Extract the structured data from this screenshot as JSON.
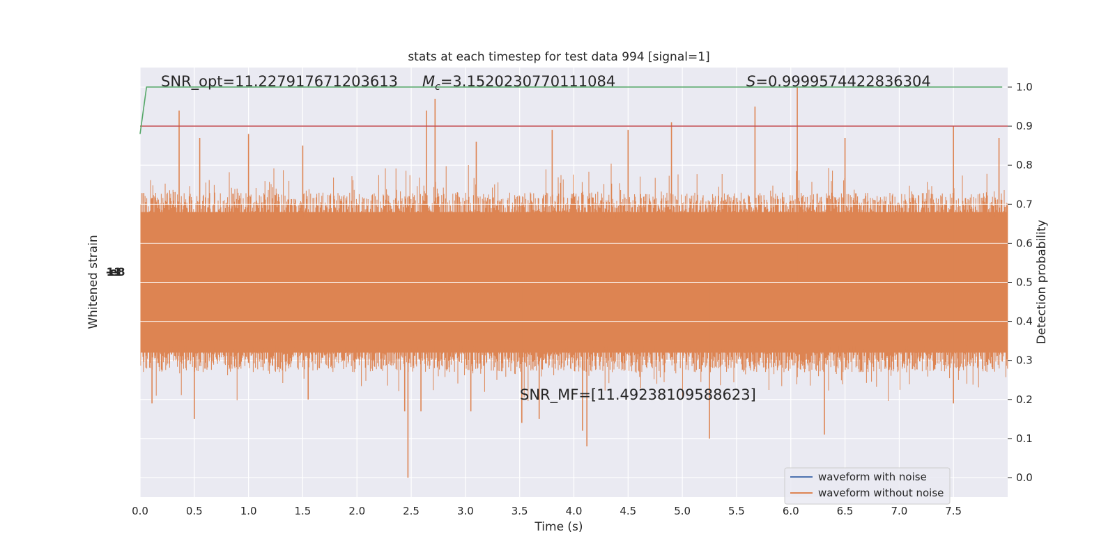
{
  "chart_data": {
    "type": "line",
    "title": "stats at each timestep for test data 994 [signal=1]",
    "xlabel": "Time (s)",
    "ylabel_left": "Whitened strain",
    "ylabel_right": "Detection probability",
    "xlim": [
      0.0,
      8.0
    ],
    "ylim_right": [
      -0.05,
      1.05
    ],
    "xticks": [
      "0.0",
      "0.5",
      "1.0",
      "1.5",
      "2.0",
      "2.5",
      "3.0",
      "3.5",
      "4.0",
      "4.5",
      "5.0",
      "5.5",
      "6.0",
      "6.5",
      "7.0",
      "7.5"
    ],
    "yticks_right": [
      "0.0",
      "0.1",
      "0.2",
      "0.3",
      "0.4",
      "0.5",
      "0.6",
      "0.7",
      "0.8",
      "0.9",
      "1.0"
    ],
    "left_tick_labels_overlapping": "-1e-18",
    "annotations": {
      "snr_opt": "SNR_opt=11.227917671203613",
      "mc_symbol": "M",
      "mc_sub": "c",
      "mc_value": "=3.1520230770111084",
      "s_symbol": "S",
      "s_value": "=0.9999574422836304",
      "snr_mf": "SNR_MF=[11.49238109588623]"
    },
    "legend": [
      {
        "label": "waveform with noise",
        "color": "#4c72b0"
      },
      {
        "label": "waveform without noise",
        "color": "#dd8452"
      }
    ],
    "series": [
      {
        "name": "waveform with noise",
        "color": "#4c72b0",
        "visible_extent": "hidden behind orange trace"
      },
      {
        "name": "waveform without noise",
        "color": "#dd8452",
        "center": 0.5,
        "typical_range": [
          0.3,
          0.7
        ],
        "max": 1.0,
        "min": 0.0
      },
      {
        "name": "detection probability",
        "color": "#55a868",
        "x": [
          0.0,
          0.06,
          7.95
        ],
        "values": [
          0.88,
          1.0,
          1.0
        ]
      },
      {
        "name": "threshold",
        "color": "#c44e52",
        "x": [
          0.0,
          8.0
        ],
        "values": [
          0.9,
          0.9
        ]
      }
    ],
    "spikes_up": [
      [
        0.36,
        0.94
      ],
      [
        0.55,
        0.87
      ],
      [
        1.0,
        0.88
      ],
      [
        2.64,
        0.94
      ],
      [
        2.72,
        0.97
      ],
      [
        3.8,
        0.89
      ],
      [
        4.5,
        0.89
      ],
      [
        4.9,
        0.91
      ],
      [
        5.67,
        0.95
      ],
      [
        6.06,
        1.0
      ],
      [
        6.5,
        0.87
      ],
      [
        7.5,
        0.9
      ],
      [
        7.92,
        0.87
      ],
      [
        1.5,
        0.85
      ],
      [
        3.1,
        0.86
      ]
    ],
    "spikes_down": [
      [
        0.11,
        0.19
      ],
      [
        0.5,
        0.15
      ],
      [
        2.44,
        0.17
      ],
      [
        2.47,
        0.0
      ],
      [
        2.59,
        0.17
      ],
      [
        3.52,
        0.14
      ],
      [
        4.12,
        0.08
      ],
      [
        4.08,
        0.12
      ],
      [
        5.25,
        0.1
      ],
      [
        6.31,
        0.11
      ],
      [
        7.5,
        0.19
      ],
      [
        3.68,
        0.15
      ],
      [
        1.55,
        0.2
      ],
      [
        3.05,
        0.17
      ]
    ],
    "colors": {
      "plot_bg": "#eaeaf2",
      "grid": "#ffffff"
    }
  }
}
